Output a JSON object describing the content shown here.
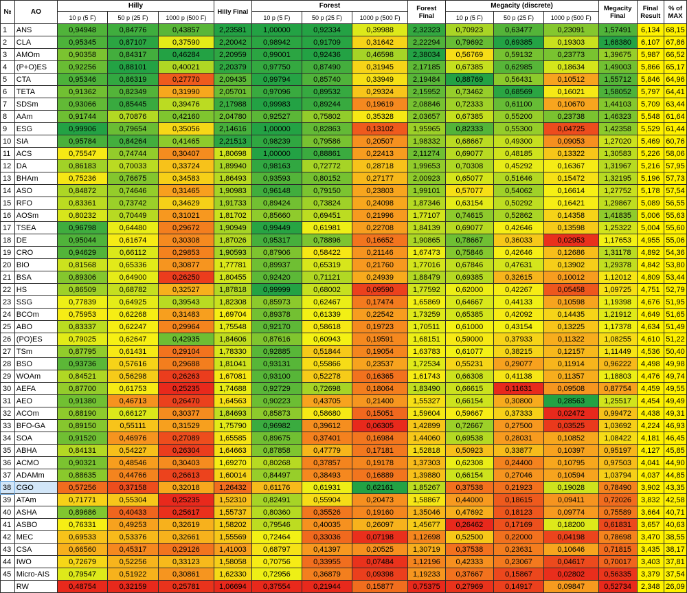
{
  "header": {
    "no": "№",
    "ao": "AO",
    "groups": {
      "hilly": "Hilly",
      "forest": "Forest",
      "megacity": "Megacity (discrete)"
    },
    "sub": [
      "10 p (5 F)",
      "50 p (25 F)",
      "1000 p (500 F)"
    ],
    "hilly_final": "Hilly Final",
    "forest_final": "Forest Final",
    "megacity_final": "Megacity Final",
    "final_result": "Final Result",
    "pct_max": "% of MAX"
  },
  "colors": {
    "red": "#e8291c",
    "orange": "#f79a1f",
    "yellow": "#f6f214",
    "green": "#23a244",
    "final_bg": "#fff200",
    "pct_bg": "#fff200"
  },
  "rows": [
    {
      "no": "1",
      "ao": "ANS",
      "v": [
        "0,94948",
        "0,84776",
        "0,43857",
        "2,23581",
        "1,00000",
        "0,92334",
        "0,39988",
        "2,32323",
        "0,70923",
        "0,63477",
        "0,23091",
        "1,57491",
        "6,134",
        "68,15"
      ]
    },
    {
      "no": "2",
      "ao": "CLA",
      "v": [
        "0,95345",
        "0,87107",
        "0,37590",
        "2,20042",
        "0,98942",
        "0,91709",
        "0,31642",
        "2,22294",
        "0,79692",
        "0,69385",
        "0,19303",
        "1,68380",
        "6,107",
        "67,86"
      ]
    },
    {
      "no": "3",
      "ao": "AMOm",
      "v": [
        "0,90358",
        "0,84317",
        "0,46284",
        "2,20959",
        "0,99001",
        "0,92436",
        "0,46598",
        "2,38034",
        "0,56769",
        "0,59132",
        "0,23773",
        "1,39675",
        "5,987",
        "66,52"
      ]
    },
    {
      "no": "4",
      "ao": "(P+O)ES",
      "v": [
        "0,92256",
        "0,88101",
        "0,40021",
        "2,20379",
        "0,97750",
        "0,87490",
        "0,31945",
        "2,17185",
        "0,67385",
        "0,62985",
        "0,18634",
        "1,49003",
        "5,866",
        "65,17"
      ]
    },
    {
      "no": "5",
      "ao": "CTA",
      "v": [
        "0,95346",
        "0,86319",
        "0,27770",
        "2,09435",
        "0,99794",
        "0,85740",
        "0,33949",
        "2,19484",
        "0,88769",
        "0,56431",
        "0,10512",
        "1,55712",
        "5,846",
        "64,96"
      ]
    },
    {
      "no": "6",
      "ao": "TETA",
      "v": [
        "0,91362",
        "0,82349",
        "0,31990",
        "2,05701",
        "0,97096",
        "0,89532",
        "0,29324",
        "2,15952",
        "0,73462",
        "0,68569",
        "0,16021",
        "1,58052",
        "5,797",
        "64,41"
      ]
    },
    {
      "no": "7",
      "ao": "SDSm",
      "v": [
        "0,93066",
        "0,85445",
        "0,39476",
        "2,17988",
        "0,99983",
        "0,89244",
        "0,19619",
        "2,08846",
        "0,72333",
        "0,61100",
        "0,10670",
        "1,44103",
        "5,709",
        "63,44"
      ]
    },
    {
      "no": "8",
      "ao": "AAm",
      "v": [
        "0,91744",
        "0,70876",
        "0,42160",
        "2,04780",
        "0,92527",
        "0,75802",
        "0,35328",
        "2,03657",
        "0,67385",
        "0,55200",
        "0,23738",
        "1,46323",
        "5,548",
        "61,64"
      ]
    },
    {
      "no": "9",
      "ao": "ESG",
      "v": [
        "0,99906",
        "0,79654",
        "0,35056",
        "2,14616",
        "1,00000",
        "0,82863",
        "0,13102",
        "1,95965",
        "0,82333",
        "0,55300",
        "0,04725",
        "1,42358",
        "5,529",
        "61,44"
      ]
    },
    {
      "no": "10",
      "ao": "SIA",
      "v": [
        "0,95784",
        "0,84264",
        "0,41465",
        "2,21513",
        "0,98239",
        "0,79586",
        "0,20507",
        "1,98332",
        "0,68667",
        "0,49300",
        "0,09053",
        "1,27020",
        "5,469",
        "60,76"
      ]
    },
    {
      "no": "11",
      "ao": "ACS",
      "v": [
        "0,75547",
        "0,74744",
        "0,30407",
        "1,80698",
        "1,00000",
        "0,88861",
        "0,22413",
        "2,11274",
        "0,69077",
        "0,48185",
        "0,13322",
        "1,30583",
        "5,226",
        "58,06"
      ]
    },
    {
      "no": "12",
      "ao": "DA",
      "v": [
        "0,86183",
        "0,70033",
        "0,33724",
        "1,89940",
        "0,98163",
        "0,72772",
        "0,28718",
        "1,99653",
        "0,70308",
        "0,45292",
        "0,16367",
        "1,31967",
        "5,216",
        "57,95"
      ]
    },
    {
      "no": "13",
      "ao": "BHAm",
      "v": [
        "0,75236",
        "0,76675",
        "0,34583",
        "1,86493",
        "0,93593",
        "0,80152",
        "0,27177",
        "2,00923",
        "0,65077",
        "0,51646",
        "0,15472",
        "1,32195",
        "5,196",
        "57,73"
      ]
    },
    {
      "no": "14",
      "ao": "ASO",
      "v": [
        "0,84872",
        "0,74646",
        "0,31465",
        "1,90983",
        "0,96148",
        "0,79150",
        "0,23803",
        "1,99101",
        "0,57077",
        "0,54062",
        "0,16614",
        "1,27752",
        "5,178",
        "57,54"
      ]
    },
    {
      "no": "15",
      "ao": "RFO",
      "v": [
        "0,83361",
        "0,73742",
        "0,34629",
        "1,91733",
        "0,89424",
        "0,73824",
        "0,24098",
        "1,87346",
        "0,63154",
        "0,50292",
        "0,16421",
        "1,29867",
        "5,089",
        "56,55"
      ]
    },
    {
      "no": "16",
      "ao": "AOSm",
      "v": [
        "0,80232",
        "0,70449",
        "0,31021",
        "1,81702",
        "0,85660",
        "0,69451",
        "0,21996",
        "1,77107",
        "0,74615",
        "0,52862",
        "0,14358",
        "1,41835",
        "5,006",
        "55,63"
      ]
    },
    {
      "no": "17",
      "ao": "TSEA",
      "v": [
        "0,96798",
        "0,64480",
        "0,29672",
        "1,90949",
        "0,99449",
        "0,61981",
        "0,22708",
        "1,84139",
        "0,69077",
        "0,42646",
        "0,13598",
        "1,25322",
        "5,004",
        "55,60"
      ]
    },
    {
      "no": "18",
      "ao": "DE",
      "v": [
        "0,95044",
        "0,61674",
        "0,30308",
        "1,87026",
        "0,95317",
        "0,78896",
        "0,16652",
        "1,90865",
        "0,78667",
        "0,36033",
        "0,02953",
        "1,17653",
        "4,955",
        "55,06"
      ]
    },
    {
      "no": "19",
      "ao": "CRO",
      "v": [
        "0,94629",
        "0,66112",
        "0,29853",
        "1,90593",
        "0,87906",
        "0,58422",
        "0,21146",
        "1,67473",
        "0,75846",
        "0,42646",
        "0,12686",
        "1,31178",
        "4,892",
        "54,36"
      ]
    },
    {
      "no": "20",
      "ao": "BIO",
      "v": [
        "0,81568",
        "0,65336",
        "0,30877",
        "1,77781",
        "0,89937",
        "0,65319",
        "0,21760",
        "1,77016",
        "0,67846",
        "0,47631",
        "0,13902",
        "1,29378",
        "4,842",
        "53,80"
      ]
    },
    {
      "no": "21",
      "ao": "BSA",
      "v": [
        "0,89306",
        "0,64900",
        "0,26250",
        "1,80455",
        "0,92420",
        "0,71121",
        "0,24939",
        "1,88479",
        "0,69385",
        "0,32615",
        "0,10012",
        "1,12012",
        "4,809",
        "53,44"
      ]
    },
    {
      "no": "22",
      "ao": "HS",
      "v": [
        "0,86509",
        "0,68782",
        "0,32527",
        "1,87818",
        "0,99999",
        "0,68002",
        "0,09590",
        "1,77592",
        "0,62000",
        "0,42267",
        "0,05458",
        "1,09725",
        "4,751",
        "52,79"
      ]
    },
    {
      "no": "23",
      "ao": "SSG",
      "v": [
        "0,77839",
        "0,64925",
        "0,39543",
        "1,82308",
        "0,85973",
        "0,62467",
        "0,17474",
        "1,65869",
        "0,64667",
        "0,44133",
        "0,10598",
        "1,19398",
        "4,676",
        "51,95"
      ]
    },
    {
      "no": "24",
      "ao": "BCOm",
      "v": [
        "0,75953",
        "0,62268",
        "0,31483",
        "1,69704",
        "0,89378",
        "0,61339",
        "0,22542",
        "1,73259",
        "0,65385",
        "0,42092",
        "0,14435",
        "1,21912",
        "4,649",
        "51,65"
      ]
    },
    {
      "no": "25",
      "ao": "ABO",
      "v": [
        "0,83337",
        "0,62247",
        "0,29964",
        "1,75548",
        "0,92170",
        "0,58618",
        "0,19723",
        "1,70511",
        "0,61000",
        "0,43154",
        "0,13225",
        "1,17378",
        "4,634",
        "51,49"
      ]
    },
    {
      "no": "26",
      "ao": "(PO)ES",
      "v": [
        "0,79025",
        "0,62647",
        "0,42935",
        "1,84606",
        "0,87616",
        "0,60943",
        "0,19591",
        "1,68151",
        "0,59000",
        "0,37933",
        "0,11322",
        "1,08255",
        "4,610",
        "51,22"
      ]
    },
    {
      "no": "27",
      "ao": "TSm",
      "v": [
        "0,87795",
        "0,61431",
        "0,29104",
        "1,78330",
        "0,92885",
        "0,51844",
        "0,19054",
        "1,63783",
        "0,61077",
        "0,38215",
        "0,12157",
        "1,11449",
        "4,536",
        "50,40"
      ]
    },
    {
      "no": "28",
      "ao": "BSO",
      "v": [
        "0,93736",
        "0,57616",
        "0,29688",
        "1,81041",
        "0,93131",
        "0,55866",
        "0,23537",
        "1,72534",
        "0,55231",
        "0,29077",
        "0,11914",
        "0,96222",
        "4,498",
        "49,98"
      ]
    },
    {
      "no": "29",
      "ao": "WOAm",
      "v": [
        "0,84521",
        "0,56298",
        "0,26263",
        "1,67081",
        "0,93100",
        "0,52278",
        "0,16365",
        "1,61743",
        "0,66308",
        "0,41138",
        "0,11357",
        "1,18803",
        "4,476",
        "49,74"
      ]
    },
    {
      "no": "30",
      "ao": "AEFA",
      "v": [
        "0,87700",
        "0,61753",
        "0,25235",
        "1,74688",
        "0,92729",
        "0,72698",
        "0,18064",
        "1,83490",
        "0,66615",
        "0,11631",
        "0,09508",
        "0,87754",
        "4,459",
        "49,55"
      ]
    },
    {
      "no": "31",
      "ao": "AEO",
      "v": [
        "0,91380",
        "0,46713",
        "0,26470",
        "1,64563",
        "0,90223",
        "0,43705",
        "0,21400",
        "1,55327",
        "0,66154",
        "0,30800",
        "0,28563",
        "1,25517",
        "4,454",
        "49,49"
      ]
    },
    {
      "no": "32",
      "ao": "ACOm",
      "v": [
        "0,88190",
        "0,66127",
        "0,30377",
        "1,84693",
        "0,85873",
        "0,58680",
        "0,15051",
        "1,59604",
        "0,59667",
        "0,37333",
        "0,02472",
        "0,99472",
        "4,438",
        "49,31"
      ]
    },
    {
      "no": "33",
      "ao": "BFO-GA",
      "v": [
        "0,89150",
        "0,55111",
        "0,31529",
        "1,75790",
        "0,96982",
        "0,39612",
        "0,06305",
        "1,42899",
        "0,72667",
        "0,27500",
        "0,03525",
        "1,03692",
        "4,224",
        "46,93"
      ]
    },
    {
      "no": "34",
      "ao": "SOA",
      "v": [
        "0,91520",
        "0,46976",
        "0,27089",
        "1,65585",
        "0,89675",
        "0,37401",
        "0,16984",
        "1,44060",
        "0,69538",
        "0,28031",
        "0,10852",
        "1,08422",
        "4,181",
        "46,45"
      ]
    },
    {
      "no": "35",
      "ao": "ABHA",
      "v": [
        "0,84131",
        "0,54227",
        "0,26304",
        "1,64663",
        "0,87858",
        "0,47779",
        "0,17181",
        "1,52818",
        "0,50923",
        "0,33877",
        "0,10397",
        "0,95197",
        "4,127",
        "45,85"
      ]
    },
    {
      "no": "36",
      "ao": "ACMO",
      "v": [
        "0,90321",
        "0,48546",
        "0,30403",
        "1,69270",
        "0,80268",
        "0,37857",
        "0,19178",
        "1,37303",
        "0,62308",
        "0,24400",
        "0,10795",
        "0,97503",
        "4,041",
        "44,90"
      ]
    },
    {
      "no": "37",
      "ao": "ADAMm",
      "v": [
        "0,88635",
        "0,44766",
        "0,26613",
        "1,60014",
        "0,84497",
        "0,38493",
        "0,16889",
        "1,39880",
        "0,66154",
        "0,27046",
        "0,10594",
        "1,03794",
        "4,037",
        "44,85"
      ]
    },
    {
      "no": "38",
      "ao": "CGO",
      "v": [
        "0,57256",
        "0,37158",
        "0,32018",
        "1,26432",
        "0,61176",
        "0,61931",
        "0,62161",
        "1,85267",
        "0,37538",
        "0,21923",
        "0,19028",
        "0,78490",
        "3,902",
        "43,35"
      ]
    },
    {
      "no": "39",
      "ao": "ATAm",
      "v": [
        "0,71771",
        "0,55304",
        "0,25235",
        "1,52310",
        "0,82491",
        "0,55904",
        "0,20473",
        "1,58867",
        "0,44000",
        "0,18615",
        "0,09411",
        "0,72026",
        "3,832",
        "42,58"
      ]
    },
    {
      "no": "40",
      "ao": "ASHA",
      "v": [
        "0,89686",
        "0,40433",
        "0,25617",
        "1,55737",
        "0,80360",
        "0,35526",
        "0,19160",
        "1,35046",
        "0,47692",
        "0,18123",
        "0,09774",
        "0,75589",
        "3,664",
        "40,71"
      ]
    },
    {
      "no": "41",
      "ao": "ASBO",
      "v": [
        "0,76331",
        "0,49253",
        "0,32619",
        "1,58202",
        "0,79546",
        "0,40035",
        "0,26097",
        "1,45677",
        "0,26462",
        "0,17169",
        "0,18200",
        "0,61831",
        "3,657",
        "40,63"
      ]
    },
    {
      "no": "42",
      "ao": "MEC",
      "v": [
        "0,69533",
        "0,53376",
        "0,32661",
        "1,55569",
        "0,72464",
        "0,33036",
        "0,07198",
        "1,12698",
        "0,52500",
        "0,22000",
        "0,04198",
        "0,78698",
        "3,470",
        "38,55"
      ]
    },
    {
      "no": "43",
      "ao": "CSA",
      "v": [
        "0,66560",
        "0,45317",
        "0,29126",
        "1,41003",
        "0,68797",
        "0,41397",
        "0,20525",
        "1,30719",
        "0,37538",
        "0,23631",
        "0,10646",
        "0,71815",
        "3,435",
        "38,17"
      ]
    },
    {
      "no": "44",
      "ao": "IWO",
      "v": [
        "0,72679",
        "0,52256",
        "0,33123",
        "1,58058",
        "0,70756",
        "0,33955",
        "0,07484",
        "1,12196",
        "0,42333",
        "0,23067",
        "0,04617",
        "0,70017",
        "3,403",
        "37,81"
      ]
    },
    {
      "no": "45",
      "ao": "Micro-AIS",
      "v": [
        "0,79547",
        "0,51922",
        "0,30861",
        "1,62330",
        "0,72956",
        "0,36879",
        "0,09398",
        "1,19233",
        "0,37667",
        "0,15867",
        "0,02802",
        "0,56335",
        "3,379",
        "37,54"
      ]
    },
    {
      "no": "",
      "ao": "RW",
      "v": [
        "0,48754",
        "0,32159",
        "0,25781",
        "1,06694",
        "0,37554",
        "0,21944",
        "0,15877",
        "0,75375",
        "0,27969",
        "0,14917",
        "0,09847",
        "0,52734",
        "2,348",
        "26,09"
      ]
    }
  ]
}
